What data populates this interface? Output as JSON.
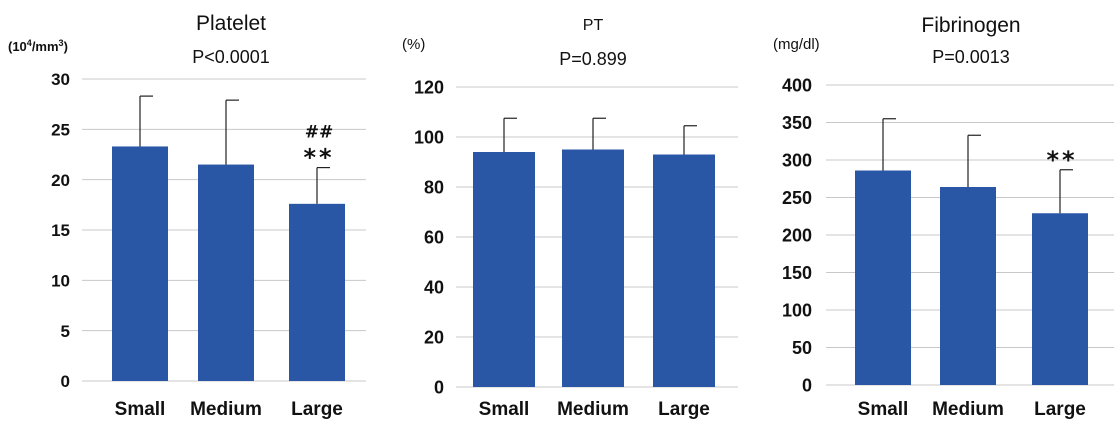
{
  "chart_data": [
    {
      "type": "bar",
      "title": "Platelet",
      "subtitle": "P<0.0001",
      "ylabel": "(10⁴/mm³)",
      "categories": [
        "Small",
        "Medium",
        "Large"
      ],
      "values": [
        23.3,
        21.5,
        17.6
      ],
      "error_upper": [
        28.3,
        27.9,
        21.2
      ],
      "annotations": [
        "",
        "",
        "##\n**"
      ],
      "ylim": [
        0,
        30
      ],
      "yticks": [
        0,
        5,
        10,
        15,
        20,
        25,
        30
      ],
      "grid": true,
      "color": "#2a56a6"
    },
    {
      "type": "bar",
      "title": "PT",
      "subtitle": "P=0.899",
      "ylabel": "(%)",
      "categories": [
        "Small",
        "Medium",
        "Large"
      ],
      "values": [
        94,
        95,
        93
      ],
      "error_upper": [
        107.5,
        107.5,
        104.5
      ],
      "annotations": [
        "",
        "",
        ""
      ],
      "ylim": [
        0,
        120
      ],
      "yticks": [
        0,
        20,
        40,
        60,
        80,
        100,
        120
      ],
      "grid": true,
      "color": "#2a56a6"
    },
    {
      "type": "bar",
      "title": "Fibrinogen",
      "subtitle": "P=0.0013",
      "ylabel": "(mg/dl)",
      "categories": [
        "Small",
        "Medium",
        "Large"
      ],
      "values": [
        286,
        264,
        229
      ],
      "error_upper": [
        355,
        333,
        287
      ],
      "annotations": [
        "",
        "",
        "**"
      ],
      "ylim": [
        0,
        400
      ],
      "yticks": [
        0,
        50,
        100,
        150,
        200,
        250,
        300,
        350,
        400
      ],
      "grid": true,
      "color": "#2a56a6"
    }
  ]
}
